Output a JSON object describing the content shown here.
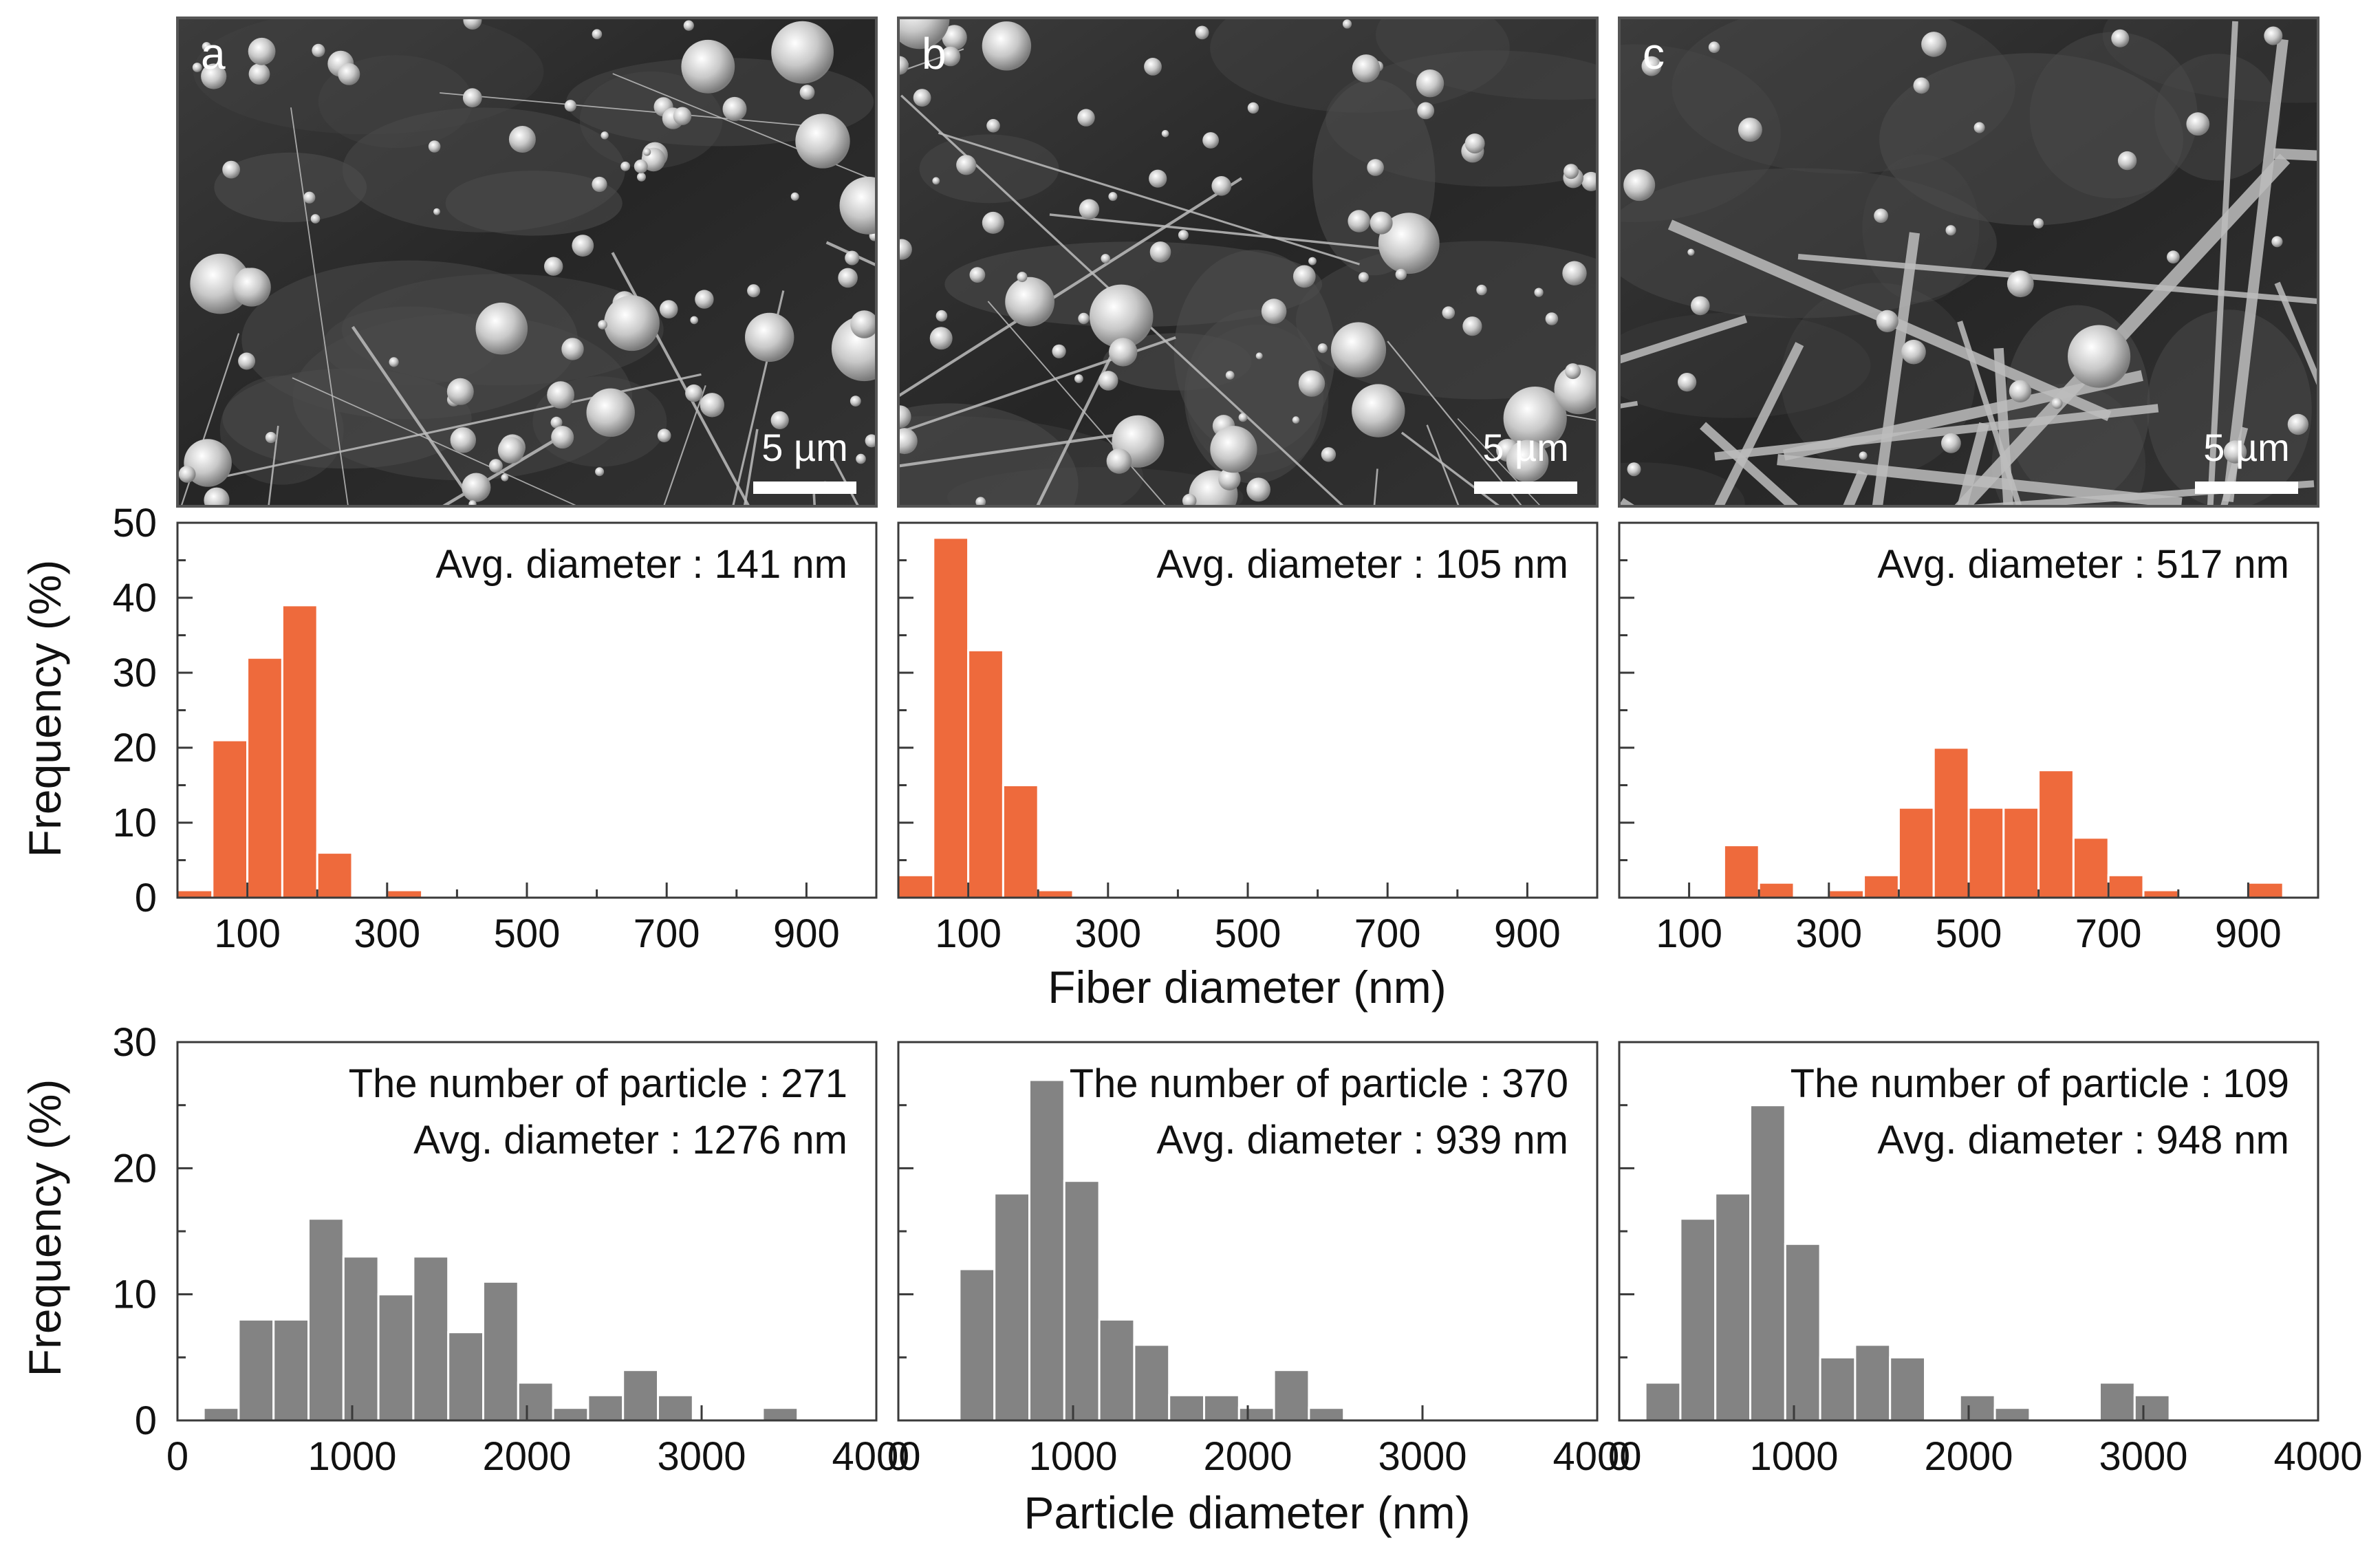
{
  "colors": {
    "fiber_bar": "#ee6a3c",
    "particle_bar": "#838383",
    "frame": "#3a3a3a",
    "sem_background": "#2a2a2a",
    "sem_feature": "#cfcfcf"
  },
  "sem_panels": [
    {
      "letter": "a",
      "scale_bar": "5 µm"
    },
    {
      "letter": "b",
      "scale_bar": "5 µm"
    },
    {
      "letter": "c",
      "scale_bar": "5 µm"
    }
  ],
  "chart_data": [
    {
      "type": "bar",
      "panel": "a-fiber",
      "x": [
        25,
        75,
        125,
        175,
        225,
        275,
        325,
        375,
        425,
        475,
        525,
        575,
        625,
        675,
        725,
        775,
        825,
        875,
        925,
        975
      ],
      "values": [
        1,
        21,
        32,
        39,
        6,
        0,
        1,
        0,
        0,
        0,
        0,
        0,
        0,
        0,
        0,
        0,
        0,
        0,
        0,
        0
      ],
      "bin_width": 50,
      "xlim": [
        0,
        1000
      ],
      "ylim": [
        0,
        50
      ],
      "xticks": [
        100,
        300,
        500,
        700,
        900
      ],
      "yticks": [
        0,
        10,
        20,
        30,
        40,
        50
      ],
      "annotations": [
        "Avg. diameter : 141 nm"
      ]
    },
    {
      "type": "bar",
      "panel": "b-fiber",
      "x": [
        25,
        75,
        125,
        175,
        225,
        275,
        325,
        375,
        425,
        475,
        525,
        575,
        625,
        675,
        725,
        775,
        825,
        875,
        925,
        975
      ],
      "values": [
        3,
        48,
        33,
        15,
        1,
        0,
        0,
        0,
        0,
        0,
        0,
        0,
        0,
        0,
        0,
        0,
        0,
        0,
        0,
        0
      ],
      "bin_width": 50,
      "xlim": [
        0,
        1000
      ],
      "ylim": [
        0,
        50
      ],
      "xticks": [
        100,
        300,
        500,
        700,
        900
      ],
      "yticks": [
        0,
        10,
        20,
        30,
        40,
        50
      ],
      "annotations": [
        "Avg. diameter : 105 nm"
      ]
    },
    {
      "type": "bar",
      "panel": "c-fiber",
      "x": [
        25,
        75,
        125,
        175,
        225,
        275,
        325,
        375,
        425,
        475,
        525,
        575,
        625,
        675,
        725,
        775,
        825,
        875,
        925,
        975
      ],
      "values": [
        0,
        0,
        0,
        7,
        2,
        0,
        1,
        3,
        12,
        20,
        12,
        12,
        17,
        8,
        3,
        1,
        0,
        0,
        2,
        0
      ],
      "bin_width": 50,
      "xlim": [
        0,
        1000
      ],
      "ylim": [
        0,
        50
      ],
      "xticks": [
        100,
        300,
        500,
        700,
        900
      ],
      "yticks": [
        0,
        10,
        20,
        30,
        40,
        50
      ],
      "annotations": [
        "Avg. diameter : 517 nm"
      ]
    },
    {
      "type": "bar",
      "panel": "a-particle",
      "x": [
        250,
        450,
        650,
        850,
        1050,
        1250,
        1450,
        1650,
        1850,
        2050,
        2250,
        2450,
        2650,
        2850,
        3050,
        3250,
        3450,
        3650,
        3850
      ],
      "values": [
        1,
        8,
        8,
        16,
        13,
        10,
        13,
        7,
        11,
        3,
        1,
        2,
        4,
        2,
        0,
        0,
        1,
        0,
        0
      ],
      "bin_width": 200,
      "xlim": [
        0,
        4000
      ],
      "ylim": [
        0,
        30
      ],
      "xticks": [
        0,
        1000,
        2000,
        3000,
        4000
      ],
      "yticks": [
        0,
        10,
        20,
        30
      ],
      "annotations": [
        "The number of particle : 271",
        "Avg. diameter : 1276 nm"
      ]
    },
    {
      "type": "bar",
      "panel": "b-particle",
      "x": [
        450,
        650,
        850,
        1050,
        1250,
        1450,
        1650,
        1850,
        2050,
        2250,
        2450,
        2650,
        2850,
        3050,
        3250,
        3450,
        3650,
        3850
      ],
      "values": [
        12,
        18,
        27,
        19,
        8,
        6,
        2,
        2,
        1,
        4,
        1,
        0,
        0,
        0,
        0,
        0,
        0,
        0
      ],
      "bin_width": 200,
      "xlim": [
        0,
        4000
      ],
      "ylim": [
        0,
        30
      ],
      "xticks": [
        0,
        1000,
        2000,
        3000,
        4000
      ],
      "yticks": [
        0,
        10,
        20,
        30
      ],
      "annotations": [
        "The number of particle : 370",
        "Avg. diameter : 939 nm"
      ]
    },
    {
      "type": "bar",
      "panel": "c-particle",
      "x": [
        250,
        450,
        650,
        850,
        1050,
        1250,
        1450,
        1650,
        1850,
        2050,
        2250,
        2450,
        2650,
        2850,
        3050,
        3250,
        3450,
        3650,
        3850
      ],
      "values": [
        3,
        16,
        18,
        25,
        14,
        5,
        6,
        5,
        0,
        2,
        1,
        0,
        0,
        3,
        2,
        0,
        0,
        0,
        0
      ],
      "bin_width": 200,
      "xlim": [
        0,
        4000
      ],
      "ylim": [
        0,
        30
      ],
      "xticks": [
        0,
        1000,
        2000,
        3000,
        4000
      ],
      "yticks": [
        0,
        10,
        20,
        30
      ],
      "annotations": [
        "The number of particle : 109",
        "Avg. diameter : 948 nm"
      ]
    }
  ],
  "labels": {
    "fiber_ylabel": "Frequency (%)",
    "fiber_xlabel": "Fiber diameter (nm)",
    "particle_ylabel": "Frequency (%)",
    "particle_xlabel": "Particle diameter (nm)"
  }
}
